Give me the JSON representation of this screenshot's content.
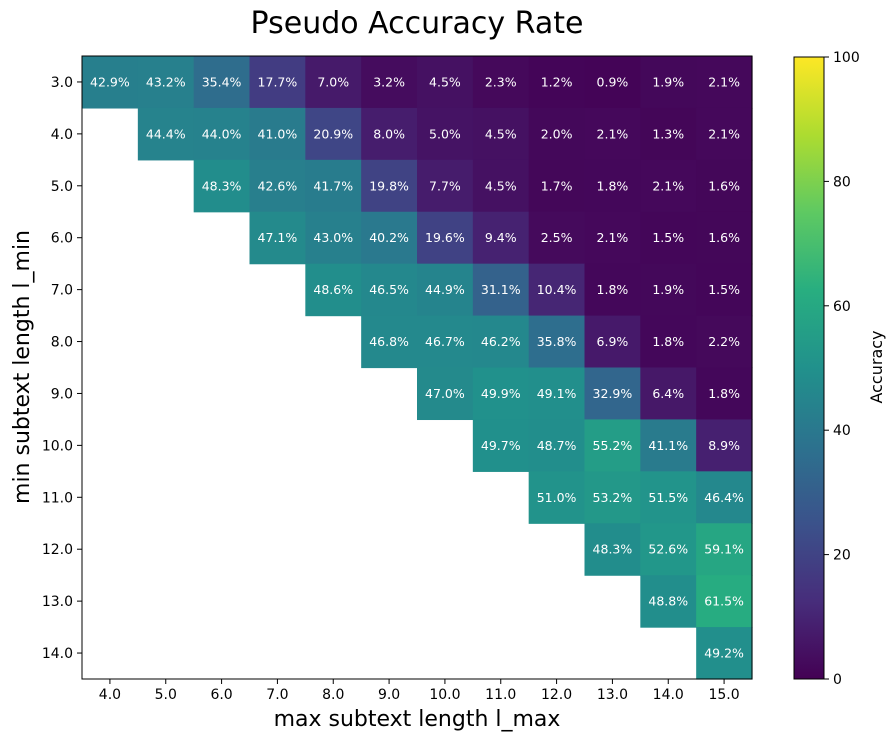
{
  "chart_data": {
    "type": "heatmap",
    "title": "Pseudo Accuracy Rate",
    "xlabel": "max subtext length l_max",
    "ylabel": "min subtext length l_min",
    "x_ticks": [
      "4.0",
      "5.0",
      "6.0",
      "7.0",
      "8.0",
      "9.0",
      "10.0",
      "11.0",
      "12.0",
      "13.0",
      "14.0",
      "15.0"
    ],
    "y_ticks": [
      "3.0",
      "4.0",
      "5.0",
      "6.0",
      "7.0",
      "8.0",
      "9.0",
      "10.0",
      "11.0",
      "12.0",
      "13.0",
      "14.0"
    ],
    "colorbar": {
      "label": "Accuracy",
      "range": [
        0,
        100
      ],
      "ticks": [
        "0",
        "20",
        "40",
        "60",
        "80",
        "100"
      ],
      "colormap": "viridis"
    },
    "cell_format": "{v}%",
    "values": [
      [
        42.9,
        43.2,
        35.4,
        17.7,
        7.0,
        3.2,
        4.5,
        2.3,
        1.2,
        0.9,
        1.9,
        2.1
      ],
      [
        null,
        44.4,
        44.0,
        41.0,
        20.9,
        8.0,
        5.0,
        4.5,
        2.0,
        2.1,
        1.3,
        2.1
      ],
      [
        null,
        null,
        48.3,
        42.6,
        41.7,
        19.8,
        7.7,
        4.5,
        1.7,
        1.8,
        2.1,
        1.6
      ],
      [
        null,
        null,
        null,
        47.1,
        43.0,
        40.2,
        19.6,
        9.4,
        2.5,
        2.1,
        1.5,
        1.6
      ],
      [
        null,
        null,
        null,
        null,
        48.6,
        46.5,
        44.9,
        31.1,
        10.4,
        1.8,
        1.9,
        1.5
      ],
      [
        null,
        null,
        null,
        null,
        null,
        46.8,
        46.7,
        46.2,
        35.8,
        6.9,
        1.8,
        2.2
      ],
      [
        null,
        null,
        null,
        null,
        null,
        null,
        47.0,
        49.9,
        49.1,
        32.9,
        6.4,
        1.8
      ],
      [
        null,
        null,
        null,
        null,
        null,
        null,
        null,
        49.7,
        48.7,
        55.2,
        41.1,
        8.9
      ],
      [
        null,
        null,
        null,
        null,
        null,
        null,
        null,
        null,
        51.0,
        53.2,
        51.5,
        46.4
      ],
      [
        null,
        null,
        null,
        null,
        null,
        null,
        null,
        null,
        null,
        48.3,
        52.6,
        59.1
      ],
      [
        null,
        null,
        null,
        null,
        null,
        null,
        null,
        null,
        null,
        null,
        48.8,
        61.5
      ],
      [
        null,
        null,
        null,
        null,
        null,
        null,
        null,
        null,
        null,
        null,
        null,
        49.2
      ]
    ]
  }
}
